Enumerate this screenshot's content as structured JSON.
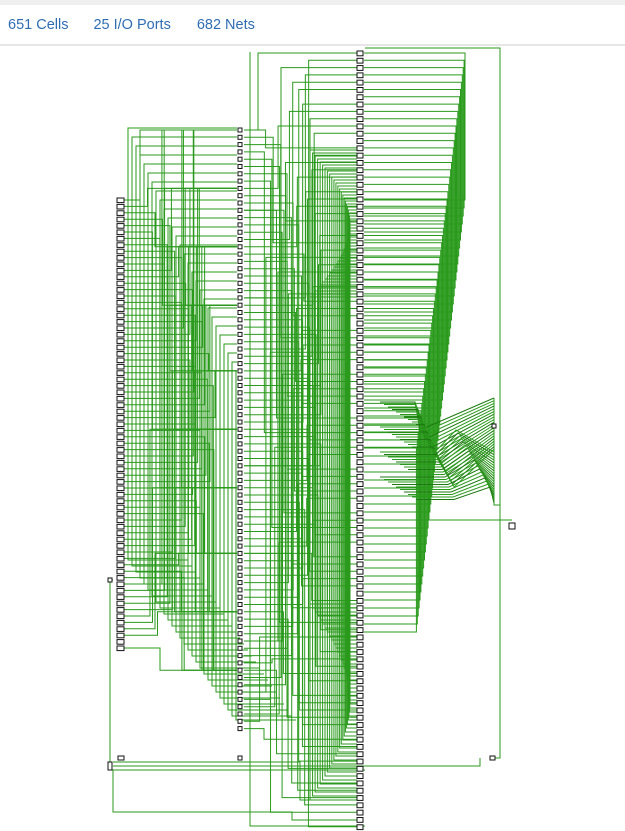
{
  "stats": {
    "cells_label": "651 Cells",
    "ports_label": "25 I/O Ports",
    "nets_label": "682 Nets"
  },
  "colors": {
    "wire": "#2a9a1c",
    "wire_dark": "#1d7a10",
    "cell_stroke": "#111111",
    "cell_fill": "#ffffff",
    "stat_link": "#2f6db3",
    "background": "#ffffff"
  },
  "schematic": {
    "view": "netlist-schematic",
    "columns": [
      "input-ports",
      "left-cells",
      "middle-cells",
      "right-cells",
      "output-cells"
    ]
  }
}
